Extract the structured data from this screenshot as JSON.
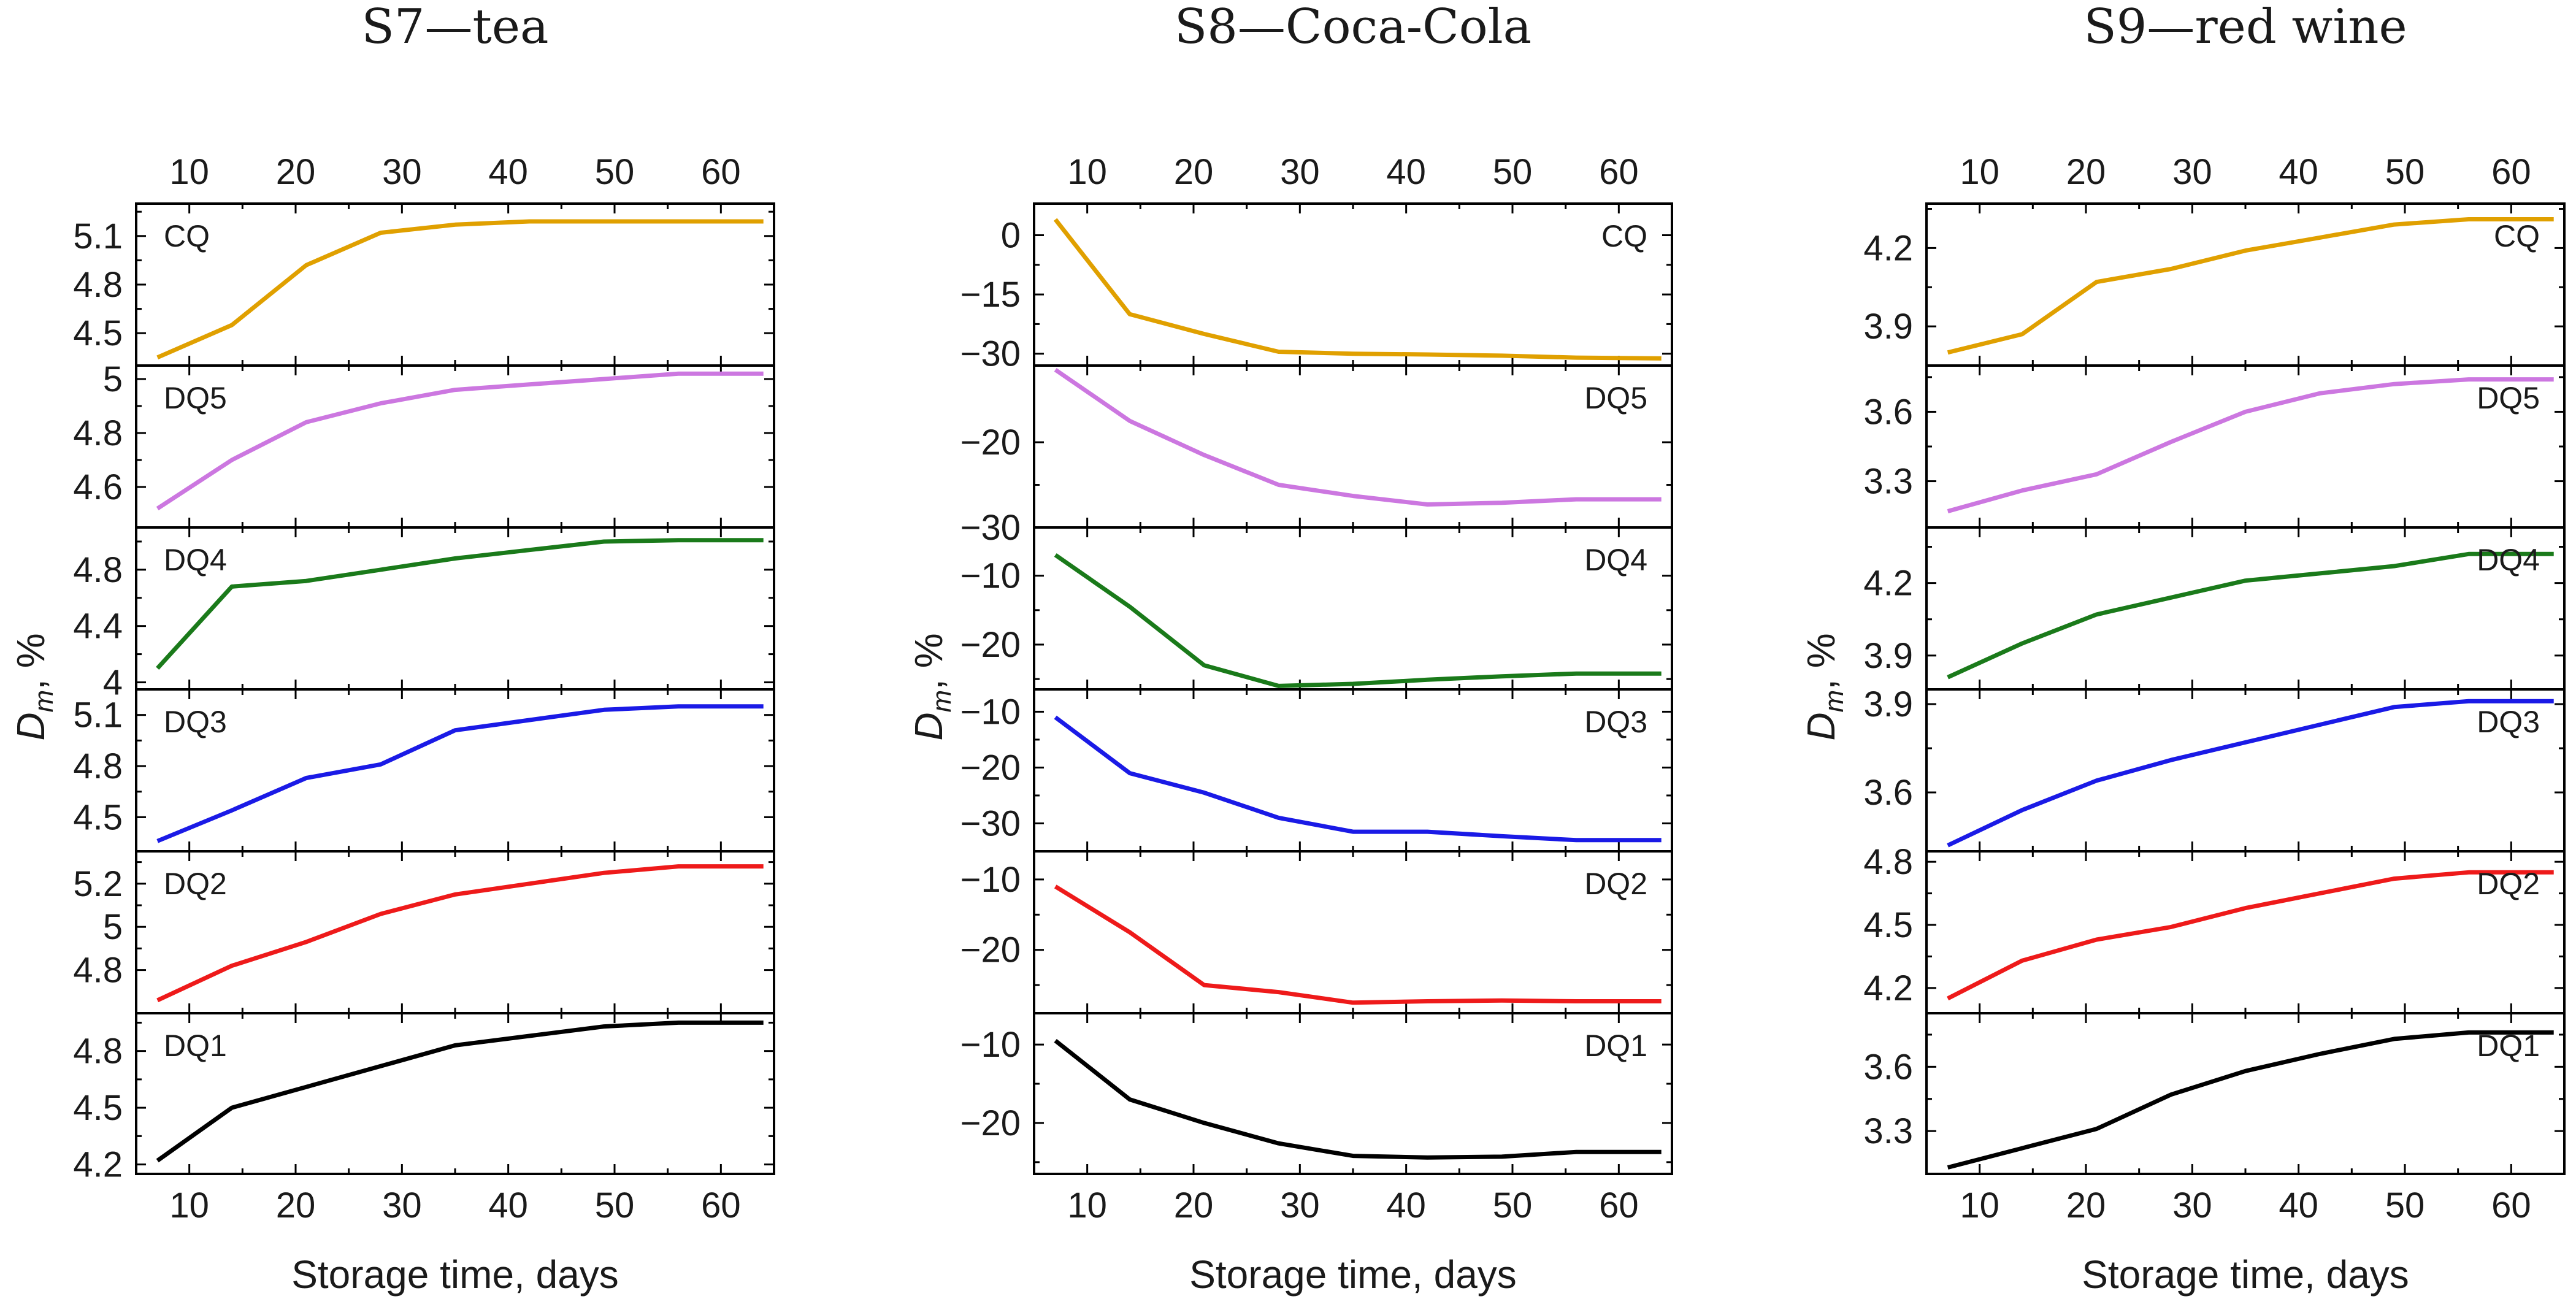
{
  "chart_data": [
    {
      "type": "line",
      "title": "S7—tea",
      "xlabel": "Storage time, days",
      "ylabel": "D",
      "ylabel_subscript": "m",
      "ylabel_suffix": ", %",
      "xlim": [
        5,
        65
      ],
      "xticks": [
        10,
        20,
        30,
        40,
        50,
        60
      ],
      "series": [
        {
          "name": "CQ",
          "color": "#e0a000",
          "x": [
            7,
            14,
            21,
            28,
            35,
            42,
            49,
            56,
            64
          ],
          "values": [
            4.35,
            4.55,
            4.92,
            5.12,
            5.17,
            5.19,
            5.19,
            5.19,
            5.19
          ],
          "ylim": [
            4.3,
            5.3
          ],
          "yticks": [
            4.5,
            4.8,
            5.1
          ]
        },
        {
          "name": "DQ5",
          "color": "#cc77e0",
          "x": [
            7,
            14,
            21,
            28,
            35,
            42,
            49,
            56,
            64
          ],
          "values": [
            4.52,
            4.7,
            4.84,
            4.91,
            4.96,
            4.98,
            5.0,
            5.02,
            5.02
          ],
          "ylim": [
            4.45,
            5.05
          ],
          "yticks": [
            4.6,
            4.8,
            5.0
          ]
        },
        {
          "name": "DQ4",
          "color": "#1a7a1a",
          "x": [
            7,
            14,
            21,
            28,
            35,
            42,
            49,
            56,
            64
          ],
          "values": [
            4.1,
            4.68,
            4.72,
            4.8,
            4.88,
            4.94,
            5.0,
            5.01,
            5.01
          ],
          "ylim": [
            3.95,
            5.1
          ],
          "yticks": [
            4.0,
            4.4,
            4.8
          ]
        },
        {
          "name": "DQ3",
          "color": "#1a1ae6",
          "x": [
            7,
            14,
            21,
            28,
            35,
            42,
            49,
            56,
            64
          ],
          "values": [
            4.36,
            4.54,
            4.73,
            4.81,
            5.01,
            5.07,
            5.13,
            5.15,
            5.15
          ],
          "ylim": [
            4.3,
            5.25
          ],
          "yticks": [
            4.5,
            4.8,
            5.1
          ]
        },
        {
          "name": "DQ2",
          "color": "#ee1a1a",
          "x": [
            7,
            14,
            21,
            28,
            35,
            42,
            49,
            56,
            64
          ],
          "values": [
            4.66,
            4.82,
            4.93,
            5.06,
            5.15,
            5.2,
            5.25,
            5.28,
            5.28
          ],
          "ylim": [
            4.6,
            5.35
          ],
          "yticks": [
            4.8,
            5.0,
            5.2
          ]
        },
        {
          "name": "DQ1",
          "color": "#000000",
          "x": [
            7,
            14,
            21,
            28,
            35,
            42,
            49,
            56,
            64
          ],
          "values": [
            4.22,
            4.5,
            4.61,
            4.72,
            4.83,
            4.88,
            4.93,
            4.95,
            4.95
          ],
          "ylim": [
            4.15,
            5.0
          ],
          "yticks": [
            4.2,
            4.5,
            4.8
          ]
        }
      ]
    },
    {
      "type": "line",
      "title": "S8—Coca-Cola",
      "xlabel": "Storage time, days",
      "ylabel": "D",
      "ylabel_subscript": "m",
      "ylabel_suffix": ", %",
      "xlim": [
        5,
        65
      ],
      "xticks": [
        10,
        20,
        30,
        40,
        50,
        60
      ],
      "series": [
        {
          "name": "CQ",
          "color": "#e0a000",
          "x": [
            7,
            14,
            21,
            28,
            35,
            42,
            49,
            56,
            64
          ],
          "values": [
            4,
            -20,
            -25,
            -29.5,
            -30,
            -30.2,
            -30.5,
            -31,
            -31.2
          ],
          "ylim": [
            -33,
            8
          ],
          "yticks": [
            0,
            -15,
            -30
          ]
        },
        {
          "name": "DQ5",
          "color": "#cc77e0",
          "x": [
            7,
            14,
            21,
            28,
            35,
            42,
            49,
            56,
            64
          ],
          "values": [
            -11.5,
            -17.5,
            -21.5,
            -25,
            -26.3,
            -27.3,
            -27.1,
            -26.7,
            -26.7
          ],
          "ylim": [
            -30,
            -11
          ],
          "yticks": [
            -20,
            -30
          ]
        },
        {
          "name": "DQ4",
          "color": "#1a7a1a",
          "x": [
            7,
            14,
            21,
            28,
            35,
            42,
            49,
            56,
            64
          ],
          "values": [
            -7,
            -14.5,
            -23,
            -26,
            -25.7,
            -25.1,
            -24.6,
            -24.2,
            -24.2
          ],
          "ylim": [
            -26.5,
            -3
          ],
          "yticks": [
            -10,
            -20
          ]
        },
        {
          "name": "DQ3",
          "color": "#1a1ae6",
          "x": [
            7,
            14,
            21,
            28,
            35,
            42,
            49,
            56,
            64
          ],
          "values": [
            -11,
            -21,
            -24.5,
            -29,
            -31.5,
            -31.5,
            -32.3,
            -33,
            -33
          ],
          "ylim": [
            -35,
            -6
          ],
          "yticks": [
            -10,
            -20,
            -30
          ]
        },
        {
          "name": "DQ2",
          "color": "#ee1a1a",
          "x": [
            7,
            14,
            21,
            28,
            35,
            42,
            49,
            56,
            64
          ],
          "values": [
            -11,
            -17.5,
            -25,
            -26,
            -27.5,
            -27.3,
            -27.2,
            -27.3,
            -27.3
          ],
          "ylim": [
            -29,
            -6
          ],
          "yticks": [
            -10,
            -20
          ]
        },
        {
          "name": "DQ1",
          "color": "#000000",
          "x": [
            7,
            14,
            21,
            28,
            35,
            42,
            49,
            56,
            64
          ],
          "values": [
            -9.5,
            -17,
            -20,
            -22.6,
            -24.2,
            -24.4,
            -24.3,
            -23.7,
            -23.7
          ],
          "ylim": [
            -26.5,
            -6
          ],
          "yticks": [
            -10,
            -20
          ]
        }
      ]
    },
    {
      "type": "line",
      "title": "S9—red wine",
      "xlabel": "Storage time, days",
      "ylabel": "D",
      "ylabel_subscript": "m",
      "ylabel_suffix": ", %",
      "xlim": [
        5,
        65
      ],
      "xticks": [
        10,
        20,
        30,
        40,
        50,
        60
      ],
      "series": [
        {
          "name": "CQ",
          "color": "#e0a000",
          "x": [
            7,
            14,
            21,
            28,
            35,
            42,
            49,
            56,
            64
          ],
          "values": [
            3.8,
            3.87,
            4.07,
            4.12,
            4.19,
            4.24,
            4.29,
            4.31,
            4.31
          ],
          "ylim": [
            3.75,
            4.37
          ],
          "yticks": [
            3.9,
            4.2
          ]
        },
        {
          "name": "DQ5",
          "color": "#cc77e0",
          "x": [
            7,
            14,
            21,
            28,
            35,
            42,
            49,
            56,
            64
          ],
          "values": [
            3.17,
            3.26,
            3.33,
            3.47,
            3.6,
            3.68,
            3.72,
            3.74,
            3.74
          ],
          "ylim": [
            3.1,
            3.8
          ],
          "yticks": [
            3.3,
            3.6
          ]
        },
        {
          "name": "DQ4",
          "color": "#1a7a1a",
          "x": [
            7,
            14,
            21,
            28,
            35,
            42,
            49,
            56,
            64
          ],
          "values": [
            3.81,
            3.95,
            4.07,
            4.14,
            4.21,
            4.24,
            4.27,
            4.32,
            4.32
          ],
          "ylim": [
            3.76,
            4.43
          ],
          "yticks": [
            3.9,
            4.2
          ]
        },
        {
          "name": "DQ3",
          "color": "#1a1ae6",
          "x": [
            7,
            14,
            21,
            28,
            35,
            42,
            49,
            56,
            64
          ],
          "values": [
            3.42,
            3.54,
            3.64,
            3.71,
            3.77,
            3.83,
            3.89,
            3.91,
            3.91
          ],
          "ylim": [
            3.4,
            3.95
          ],
          "yticks": [
            3.6,
            3.9
          ]
        },
        {
          "name": "DQ2",
          "color": "#ee1a1a",
          "x": [
            7,
            14,
            21,
            28,
            35,
            42,
            49,
            56,
            64
          ],
          "values": [
            4.15,
            4.33,
            4.43,
            4.49,
            4.58,
            4.65,
            4.72,
            4.75,
            4.75
          ],
          "ylim": [
            4.08,
            4.85
          ],
          "yticks": [
            4.2,
            4.5,
            4.8
          ]
        },
        {
          "name": "DQ1",
          "color": "#000000",
          "x": [
            7,
            14,
            21,
            28,
            35,
            42,
            49,
            56,
            64
          ],
          "values": [
            3.13,
            3.22,
            3.31,
            3.47,
            3.58,
            3.66,
            3.73,
            3.76,
            3.76
          ],
          "ylim": [
            3.1,
            3.85
          ],
          "yticks": [
            3.3,
            3.6
          ]
        }
      ]
    }
  ]
}
